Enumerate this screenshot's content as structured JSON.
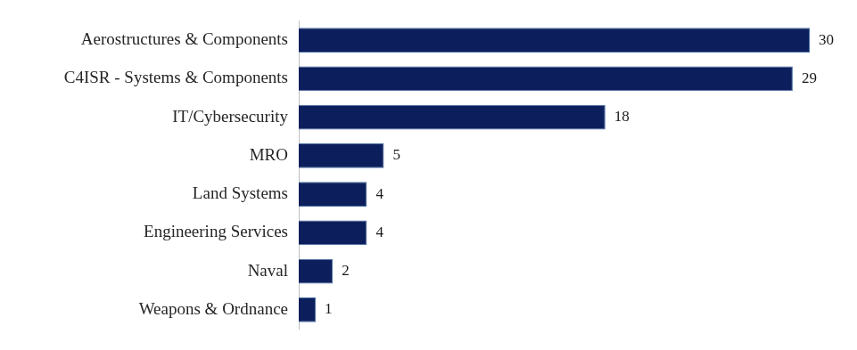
{
  "chart_data": {
    "type": "bar",
    "orientation": "horizontal",
    "categories": [
      "Aerostructures & Components",
      "C4ISR - Systems & Components",
      "IT/Cybersecurity",
      "MRO",
      "Land Systems",
      "Engineering Services",
      "Naval",
      "Weapons & Ordnance"
    ],
    "values": [
      30,
      29,
      18,
      5,
      4,
      4,
      2,
      1
    ],
    "color": "#0c1f5c",
    "data_labels": true,
    "tick_labels": "y",
    "grid": false
  }
}
